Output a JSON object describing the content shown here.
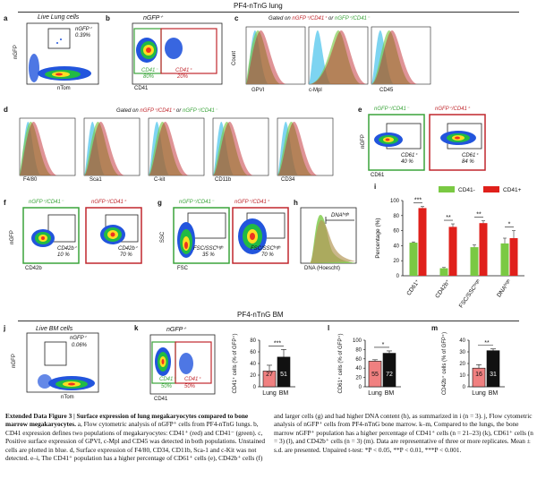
{
  "header_top": "PF4-nTnG lung",
  "header_bm": "PF4-nTnG BM",
  "panels": {
    "a": {
      "letter": "a",
      "title": "Live Lung cells",
      "gate_label": "nGFP⁺",
      "gate_pct": "0.39%",
      "xlabel": "nTom",
      "ylabel": "nGFP"
    },
    "b": {
      "letter": "b",
      "title": "nGFP⁺",
      "neg_label": "CD41⁻",
      "neg_pct": "80%",
      "pos_label": "CD41⁺",
      "pos_pct": "20%",
      "xlabel": "CD41"
    },
    "c": {
      "letter": "c",
      "title_prefix": "Gated on ",
      "title_red": "nGFP⁺/CD41⁺",
      "title_mid": " or ",
      "title_green": "nGFP⁺/CD41⁻",
      "ylabel": "Count",
      "markers": [
        "GPVI",
        "c-Mpl",
        "CD45"
      ]
    },
    "d": {
      "letter": "d",
      "title_prefix": "Gated on ",
      "title_red": "nGFP⁺/CD41⁺",
      "title_mid": " or ",
      "title_green": "nGFP⁺/CD41⁻",
      "markers": [
        "F4/80",
        "Sca1",
        "C-kit",
        "CD11b",
        "CD34"
      ]
    },
    "e": {
      "letter": "e",
      "green_title": "nGFP⁺/CD41⁻",
      "red_title": "nGFP⁺/CD41⁺",
      "gate_label": "CD61⁺",
      "green_pct": "40 %",
      "red_pct": "84 %",
      "xlabel": "CD61",
      "ylabel": "nGFP"
    },
    "f": {
      "letter": "f",
      "green_title": "nGFP⁺/CD41⁻",
      "red_title": "nGFP⁺/CD41⁺",
      "gate_label": "CD42b⁺",
      "green_pct": "10 %",
      "red_pct": "70 %",
      "xlabel": "CD42b",
      "ylabel": "nGFP"
    },
    "g": {
      "letter": "g",
      "green_title": "nGFP⁺/CD41⁻",
      "red_title": "nGFP⁺/CD41⁺",
      "gate_label": "FSC/SSCʰⁱᵍʰ",
      "green_pct": "35 %",
      "red_pct": "70 %",
      "xlabel": "FSC",
      "ylabel": "SSC"
    },
    "h": {
      "letter": "h",
      "gate_label": "DNAʰⁱᵍʰ",
      "xlabel": "DNA (Hoescht)"
    },
    "j": {
      "letter": "j",
      "title": "Live BM cells",
      "gate_label": "nGFP⁺",
      "gate_pct": "0.06%",
      "xlabel": "nTom",
      "ylabel": "nGFP"
    },
    "k": {
      "letter": "k",
      "title": "nGFP⁺",
      "neg_label": "CD41⁻",
      "neg_pct": "50%",
      "pos_label": "CD41⁺",
      "pos_pct": "50%",
      "xlabel": "CD41"
    }
  },
  "chart_data": [
    {
      "panel": "i",
      "type": "bar",
      "legend": [
        "CD41-",
        "CD41+"
      ],
      "categories": [
        "CD61⁺",
        "CD42b⁺",
        "FSC/SSCʰⁱᵍʰ",
        "DNAʰⁱᵍʰ"
      ],
      "series": [
        {
          "name": "CD41-",
          "values": [
            44,
            10,
            38,
            43
          ],
          "errors": [
            1,
            1,
            3,
            7
          ]
        },
        {
          "name": "CD41+",
          "values": [
            90,
            65,
            70,
            50
          ],
          "errors": [
            2,
            4,
            3,
            10
          ]
        }
      ],
      "significance": [
        "***",
        "**",
        "**",
        "*"
      ],
      "ylabel": "Percentage (%)",
      "ylim": [
        0,
        100
      ],
      "yticks": [
        0,
        20,
        40,
        60,
        80,
        100
      ],
      "colors": {
        "CD41-": "#7ac943",
        "CD41+": "#e0201b"
      }
    },
    {
      "panel": "k",
      "type": "bar",
      "categories": [
        "Lung",
        "BM"
      ],
      "values": [
        27,
        51
      ],
      "errors": [
        10,
        13
      ],
      "value_labels": [
        "27",
        "51"
      ],
      "significance": "***",
      "ylabel": "CD41⁺ cells (% of GFP⁺)",
      "ylim": [
        0,
        80
      ],
      "yticks": [
        0,
        20,
        40,
        60,
        80
      ],
      "colors": [
        "#f08080",
        "#111111"
      ]
    },
    {
      "panel": "l",
      "letter": "l",
      "type": "bar",
      "categories": [
        "Lung",
        "BM"
      ],
      "values": [
        55,
        72
      ],
      "errors": [
        3,
        5
      ],
      "value_labels": [
        "55",
        "72"
      ],
      "significance": "*",
      "ylabel": "CD61⁺ cells (% of GFP⁺)",
      "ylim": [
        0,
        100
      ],
      "yticks": [
        0,
        20,
        40,
        60,
        80,
        100
      ],
      "colors": [
        "#f08080",
        "#111111"
      ]
    },
    {
      "panel": "m",
      "letter": "m",
      "type": "bar",
      "categories": [
        "Lung",
        "BM"
      ],
      "values": [
        16,
        31
      ],
      "errors": [
        3,
        1.5
      ],
      "value_labels": [
        "16",
        "31"
      ],
      "significance": "**",
      "ylabel": "CD42b⁺ cells (% of GFP⁺)",
      "ylim": [
        0,
        40
      ],
      "yticks": [
        0,
        10,
        20,
        30,
        40
      ],
      "colors": [
        "#f08080",
        "#111111"
      ]
    }
  ],
  "caption": {
    "title": "Extended Data Figure 3 | Surface expression of lung megakaryocytes compared to bone marrow megakaryocytes.",
    "left": " a, Flow cytometric analysis of nGFP⁺ cells from PF4-nTnG lungs. b, CD41 expression defines two populations of megakaryocytes: CD41⁺ (red) and CD41⁻ (green). c, Positive surface expression of GPVI, c-Mpl and CD45 was detected in both populations. Unstained cells are plotted in blue. d, Surface expression of F4/80, CD34, CD11b, Sca-1 and c-Kit was not detected. e–i, The CD41⁺ population has a higher percentage of CD61⁺ cells (e), CD42b⁺ cells (f)",
    "right": "and larger cells (g) and had higher DNA content (h), as summarized in i (n = 3). j, Flow cytometric analysis of nGFP⁺ cells from PF4-nTnG bone marrow. k–m, Compared to the lungs, the bone marrow nGFP⁺ population has a higher percentage of CD41⁺ cells (n = 21–23) (k), CD61⁺ cells (n = 3) (l), and CD42b⁺ cells (n = 3) (m). Data are representative of three or more replicates. Mean ± s.d. are presented. Unpaired t-test: *P < 0.05, **P < 0.01, ***P < 0.001."
  }
}
